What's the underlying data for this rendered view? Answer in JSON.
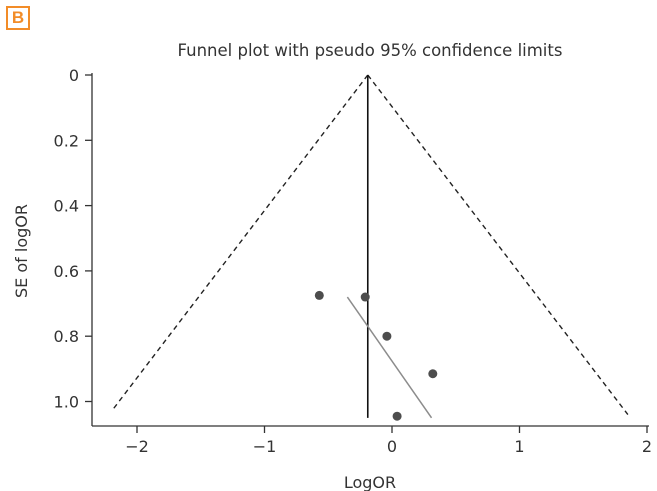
{
  "panel_label": "B",
  "colors": {
    "badge": "#f28c28",
    "axis": "#333333",
    "points": "#4d4d4d",
    "confidence_limits": "#222222",
    "egger_line": "#8c8c8c"
  },
  "chart_data": {
    "type": "scatter",
    "title": "Funnel plot with pseudo 95% confidence limits",
    "xlabel": "LogOR",
    "ylabel": "SE of logOR",
    "xlim": [
      -2.3,
      2.0
    ],
    "ylim": [
      0,
      1.07
    ],
    "y_reversed": true,
    "grid": false,
    "x_ticks": [
      -2,
      -1,
      0,
      1,
      2
    ],
    "y_ticks": [
      0,
      0.2,
      0.4,
      0.6,
      0.8,
      1.0
    ],
    "x_tick_labels": [
      "−2",
      "−1",
      "0",
      "1",
      "2"
    ],
    "y_tick_labels": [
      "0",
      "0.2",
      "0.4",
      "0.6",
      "0.8",
      "1.0"
    ],
    "points": [
      {
        "x": -0.57,
        "y": 0.675
      },
      {
        "x": -0.21,
        "y": 0.68
      },
      {
        "x": -0.04,
        "y": 0.8
      },
      {
        "x": 0.32,
        "y": 0.915
      },
      {
        "x": 0.04,
        "y": 1.045
      }
    ],
    "pooled_logor": -0.19,
    "pseudo_ci_lines": [
      {
        "x": [
          -0.19,
          -2.2
        ],
        "y": [
          0,
          1.03
        ]
      },
      {
        "x": [
          -0.19,
          1.85
        ],
        "y": [
          0,
          1.04
        ]
      }
    ],
    "pooled_line": {
      "x": -0.19,
      "y": [
        0,
        1.05
      ]
    },
    "egger_line": {
      "x": [
        -0.35,
        0.31
      ],
      "y": [
        0.68,
        1.05
      ]
    }
  }
}
